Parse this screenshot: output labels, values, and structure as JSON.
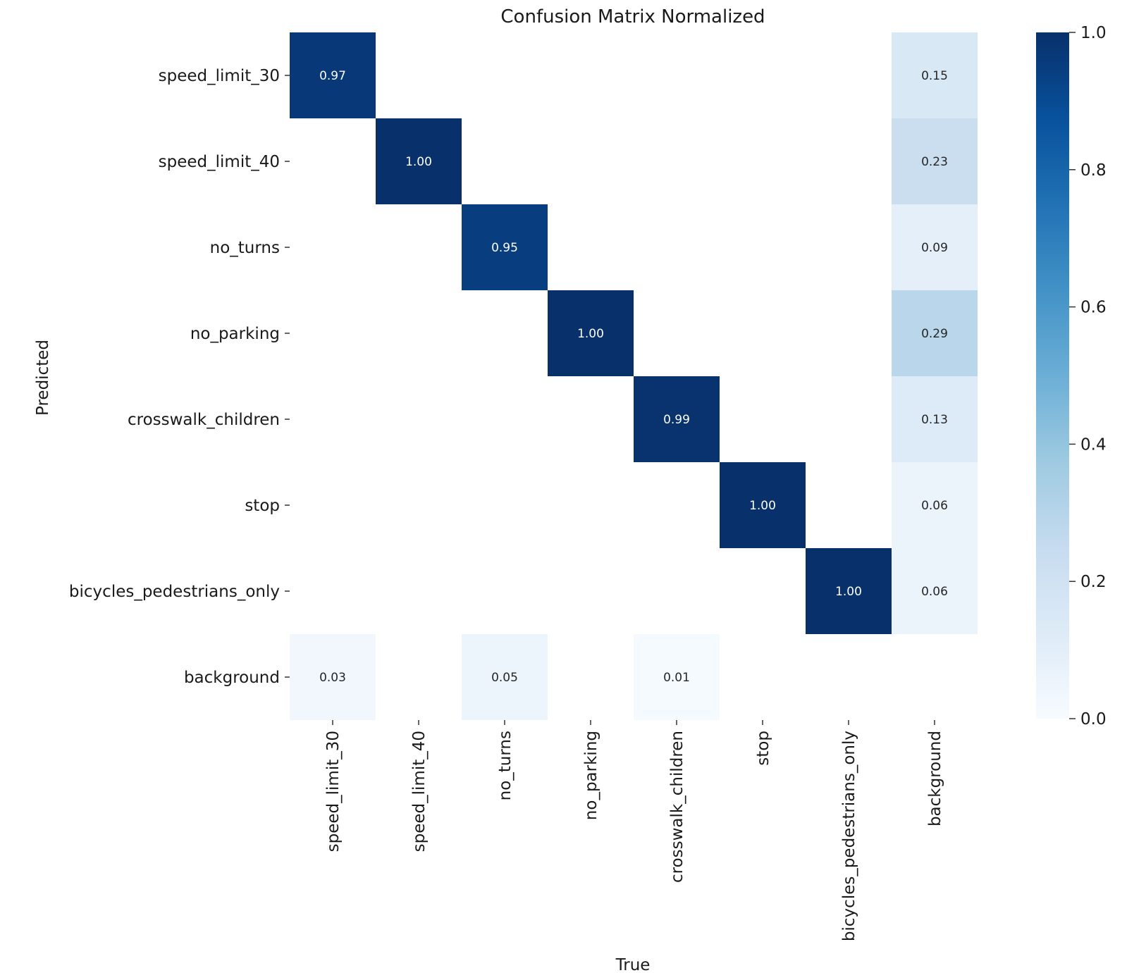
{
  "chart_data": {
    "type": "heatmap",
    "title": "Confusion Matrix Normalized",
    "xlabel": "True",
    "ylabel": "Predicted",
    "x_categories": [
      "speed_limit_30",
      "speed_limit_40",
      "no_turns",
      "no_parking",
      "crosswalk_children",
      "stop",
      "bicycles_pedestrians_only",
      "background"
    ],
    "y_categories": [
      "speed_limit_30",
      "speed_limit_40",
      "no_turns",
      "no_parking",
      "crosswalk_children",
      "stop",
      "bicycles_pedestrians_only",
      "background"
    ],
    "values": [
      [
        0.97,
        null,
        null,
        null,
        null,
        null,
        null,
        0.15
      ],
      [
        null,
        1.0,
        null,
        null,
        null,
        null,
        null,
        0.23
      ],
      [
        null,
        null,
        0.95,
        null,
        null,
        null,
        null,
        0.09
      ],
      [
        null,
        null,
        null,
        1.0,
        null,
        null,
        null,
        0.29
      ],
      [
        null,
        null,
        null,
        null,
        0.99,
        null,
        null,
        0.13
      ],
      [
        null,
        null,
        null,
        null,
        null,
        1.0,
        null,
        0.06
      ],
      [
        null,
        null,
        null,
        null,
        null,
        null,
        1.0,
        0.06
      ],
      [
        0.03,
        null,
        0.05,
        null,
        0.01,
        null,
        null,
        null
      ]
    ],
    "colormap": "Blues",
    "colorbar": {
      "range": [
        0.0,
        1.0
      ],
      "ticks": [
        0.0,
        0.2,
        0.4,
        0.6,
        0.8,
        1.0
      ],
      "tick_labels": [
        "0.0",
        "0.2",
        "0.4",
        "0.6",
        "0.8",
        "1.0"
      ]
    }
  }
}
